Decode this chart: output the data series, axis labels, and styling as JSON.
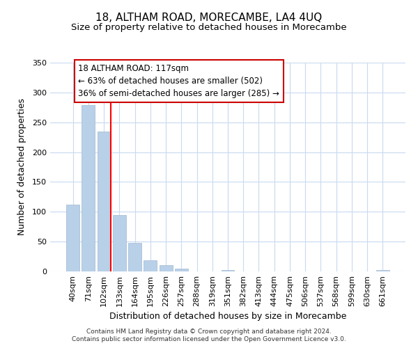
{
  "title": "18, ALTHAM ROAD, MORECAMBE, LA4 4UQ",
  "subtitle": "Size of property relative to detached houses in Morecambe",
  "xlabel": "Distribution of detached houses by size in Morecambe",
  "ylabel": "Number of detached properties",
  "bar_labels": [
    "40sqm",
    "71sqm",
    "102sqm",
    "133sqm",
    "164sqm",
    "195sqm",
    "226sqm",
    "257sqm",
    "288sqm",
    "319sqm",
    "351sqm",
    "382sqm",
    "413sqm",
    "444sqm",
    "475sqm",
    "506sqm",
    "537sqm",
    "568sqm",
    "599sqm",
    "630sqm",
    "661sqm"
  ],
  "bar_values": [
    112,
    279,
    235,
    95,
    48,
    19,
    11,
    5,
    0,
    0,
    2,
    0,
    0,
    0,
    0,
    0,
    0,
    0,
    0,
    0,
    2
  ],
  "bar_color": "#b8d0e8",
  "ylim": [
    0,
    350
  ],
  "yticks": [
    0,
    50,
    100,
    150,
    200,
    250,
    300,
    350
  ],
  "annotation_title": "18 ALTHAM ROAD: 117sqm",
  "annotation_line1": "← 63% of detached houses are smaller (502)",
  "annotation_line2": "36% of semi-detached houses are larger (285) →",
  "footer_line1": "Contains HM Land Registry data © Crown copyright and database right 2024.",
  "footer_line2": "Contains public sector information licensed under the Open Government Licence v3.0.",
  "title_fontsize": 11,
  "subtitle_fontsize": 9.5,
  "axis_label_fontsize": 9,
  "tick_fontsize": 8,
  "annotation_fontsize": 8.5,
  "footer_fontsize": 6.5,
  "background_color": "#ffffff",
  "grid_color": "#c8daf0",
  "red_line_index": 2.45
}
